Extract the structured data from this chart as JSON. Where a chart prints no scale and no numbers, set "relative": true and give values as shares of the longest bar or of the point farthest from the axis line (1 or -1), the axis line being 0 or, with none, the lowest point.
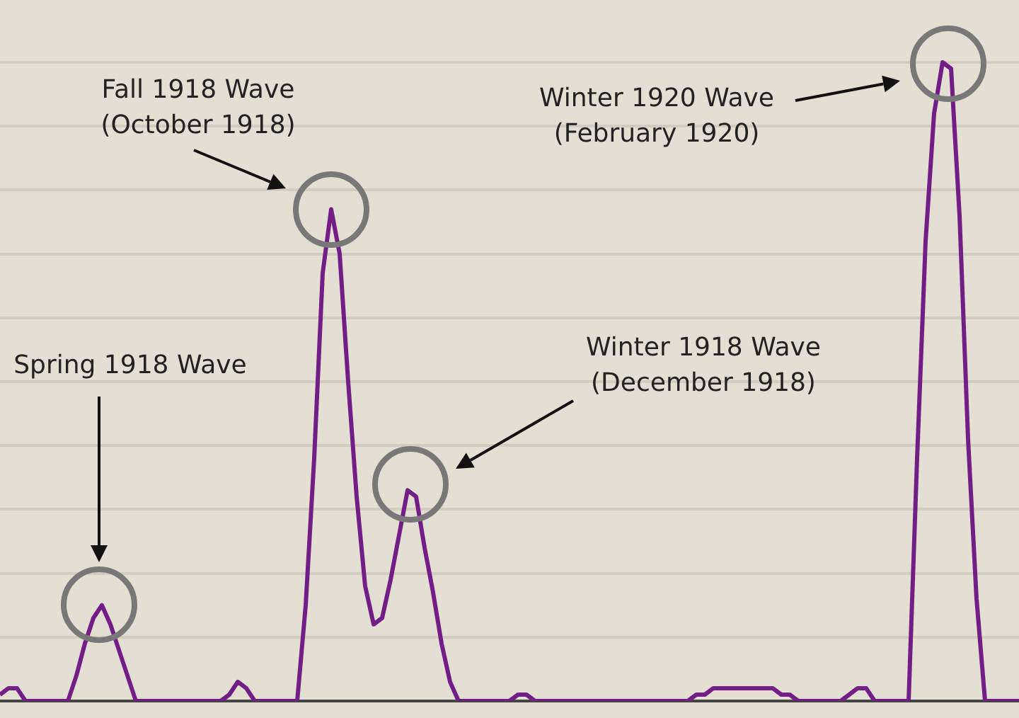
{
  "chart_data": {
    "type": "line",
    "relative": true,
    "grid": "y",
    "legend": false,
    "marker": "none",
    "line_style": "solid",
    "categories": [
      null,
      null,
      null,
      null,
      null,
      null,
      null,
      null,
      null,
      null,
      null,
      null,
      null,
      null,
      null,
      null,
      null,
      null,
      null,
      null,
      null,
      null,
      null,
      null,
      null,
      null,
      null,
      null,
      null,
      null,
      null,
      null,
      null,
      null,
      null,
      null,
      null,
      null,
      null,
      null,
      null,
      null,
      null,
      null,
      null,
      null,
      null,
      null,
      null,
      null,
      null,
      null,
      null,
      null,
      null,
      null,
      null,
      null,
      null,
      null,
      null,
      null,
      null,
      null,
      null,
      null,
      null,
      null,
      null,
      null,
      null,
      null,
      null,
      null,
      null,
      null,
      null,
      null,
      null,
      null,
      null,
      null,
      null,
      null,
      null,
      null,
      null,
      null,
      null,
      null,
      null,
      null,
      null,
      null,
      null,
      null,
      null,
      null,
      null,
      null,
      null,
      null,
      null,
      null,
      null,
      null,
      null,
      null,
      null,
      null,
      null,
      null,
      null,
      null,
      null,
      null,
      null,
      null,
      null,
      null,
      null
    ],
    "series": [
      {
        "color": "#731d87",
        "values": [
          0.01,
          0.02,
          0.02,
          0,
          0,
          0,
          0,
          0,
          0,
          0.04,
          0.09,
          0.13,
          0.15,
          0.12,
          0.08,
          0.04,
          0,
          0,
          0,
          0,
          0,
          0,
          0,
          0,
          0,
          0,
          0,
          0.01,
          0.03,
          0.02,
          0,
          0,
          0,
          0,
          0,
          0,
          0.15,
          0.38,
          0.67,
          0.77,
          0.7,
          0.5,
          0.32,
          0.18,
          0.12,
          0.13,
          0.19,
          0.26,
          0.33,
          0.32,
          0.24,
          0.17,
          0.09,
          0.03,
          0,
          0,
          0,
          0,
          0,
          0,
          0,
          0.01,
          0.01,
          0,
          0,
          0,
          0,
          0,
          0,
          0,
          0,
          0,
          0,
          0,
          0,
          0,
          0,
          0,
          0,
          0,
          0,
          0,
          0.01,
          0.01,
          0.02,
          0.02,
          0.02,
          0.02,
          0.02,
          0.02,
          0.02,
          0.02,
          0.01,
          0.01,
          0,
          0,
          0,
          0,
          0,
          0,
          0.01,
          0.02,
          0.02,
          0,
          0,
          0,
          0,
          0,
          0.38,
          0.72,
          0.92,
          1,
          0.99,
          0.76,
          0.41,
          0.16,
          0,
          0,
          0,
          0,
          0
        ]
      }
    ],
    "annotations": [
      "Spring 1918 Wave",
      "Fall 1918 Wave\n(October 1918)",
      "Winter 1918 Wave\n(December 1918)",
      "Winter 1920 Wave\n(February 1920)"
    ]
  }
}
